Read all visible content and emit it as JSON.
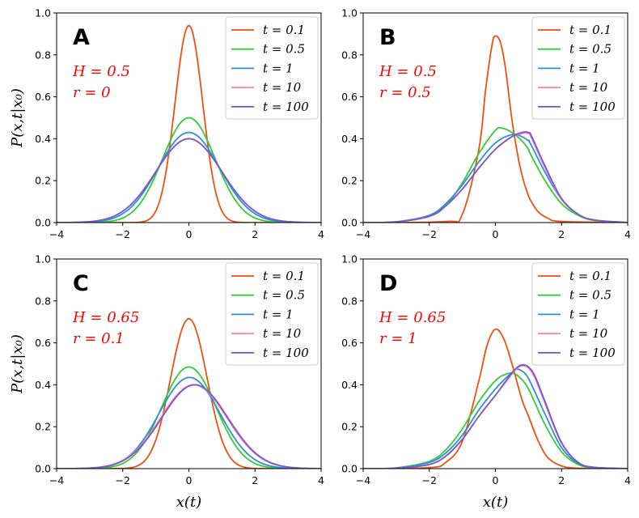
{
  "figure": {
    "x_axis_label": "x(t)",
    "y_axis_label": "P(x,t|x₀)"
  },
  "legend_prefix": "t = ",
  "series_meta": [
    {
      "name": "0.1",
      "color": "#f0500f"
    },
    {
      "name": "0.5",
      "color": "#33cc33"
    },
    {
      "name": "1",
      "color": "#2b8fd9"
    },
    {
      "name": "10",
      "color": "#ff7fbf"
    },
    {
      "name": "100",
      "color": "#7759c9"
    }
  ],
  "chart_data": [
    {
      "type": "line",
      "panel": "A",
      "H": "0.5",
      "r": "0",
      "xlim": [
        -4,
        4
      ],
      "ylim": [
        0,
        1
      ],
      "xticks": [
        -4,
        -2,
        0,
        2,
        4
      ],
      "yticks": [
        0,
        0.2,
        0.4,
        0.6,
        0.8,
        1.0
      ],
      "series": [
        {
          "name": "0.1",
          "kind": "gauss",
          "peak": 0.94,
          "mu": 0,
          "sigma": 0.42
        },
        {
          "name": "0.5",
          "kind": "gauss",
          "peak": 0.5,
          "mu": 0,
          "sigma": 0.8
        },
        {
          "name": "1",
          "kind": "gauss",
          "peak": 0.43,
          "mu": 0,
          "sigma": 0.93
        },
        {
          "name": "10",
          "kind": "gauss",
          "peak": 0.4,
          "mu": 0,
          "sigma": 1.0
        },
        {
          "name": "100",
          "kind": "gauss",
          "peak": 0.4,
          "mu": 0,
          "sigma": 1.0
        }
      ]
    },
    {
      "type": "line",
      "panel": "B",
      "H": "0.5",
      "r": "0.5",
      "xlim": [
        -4,
        4
      ],
      "ylim": [
        0,
        1
      ],
      "xticks": [
        -4,
        -2,
        0,
        2,
        4
      ],
      "yticks": [
        0,
        0.2,
        0.4,
        0.6,
        0.8,
        1.0
      ],
      "series": [
        {
          "name": "0.1",
          "kind": "points",
          "x": [
            -4,
            -1.5,
            -1,
            -0.5,
            -0.3,
            -0.1,
            0,
            0.15,
            0.3,
            0.5,
            0.7,
            0.85,
            0.95,
            1.05,
            1.3,
            1.6,
            2,
            4
          ],
          "y": [
            0,
            0.005,
            0.04,
            0.35,
            0.63,
            0.85,
            0.89,
            0.86,
            0.74,
            0.49,
            0.3,
            0.2,
            0.15,
            0.11,
            0.05,
            0.02,
            0.005,
            0
          ]
        },
        {
          "name": "0.5",
          "kind": "points",
          "x": [
            -4,
            -3,
            -2,
            -1.5,
            -1,
            -0.5,
            0,
            0.2,
            0.5,
            0.8,
            1.0,
            1.05,
            1.5,
            2,
            2.5,
            3,
            4
          ],
          "y": [
            0,
            0.003,
            0.03,
            0.08,
            0.19,
            0.33,
            0.44,
            0.45,
            0.43,
            0.39,
            0.35,
            0.33,
            0.2,
            0.09,
            0.035,
            0.01,
            0
          ]
        },
        {
          "name": "1",
          "kind": "points",
          "x": [
            -4,
            -3,
            -2,
            -1.5,
            -1,
            -0.5,
            0,
            0.5,
            0.8,
            1.0,
            1.05,
            1.5,
            2,
            2.5,
            3,
            4
          ],
          "y": [
            0,
            0.004,
            0.035,
            0.09,
            0.18,
            0.29,
            0.38,
            0.42,
            0.41,
            0.39,
            0.38,
            0.24,
            0.11,
            0.04,
            0.012,
            0
          ]
        },
        {
          "name": "10",
          "kind": "points",
          "x": [
            -4,
            -3,
            -2,
            -1.5,
            -1,
            -0.5,
            0,
            0.5,
            0.8,
            1.0,
            1.1,
            1.5,
            2,
            2.5,
            3,
            4
          ],
          "y": [
            0,
            0.004,
            0.03,
            0.08,
            0.16,
            0.26,
            0.35,
            0.41,
            0.425,
            0.425,
            0.4,
            0.26,
            0.11,
            0.04,
            0.012,
            0
          ]
        },
        {
          "name": "100",
          "kind": "points",
          "x": [
            -4,
            -3,
            -2,
            -1.5,
            -1,
            -0.5,
            0,
            0.5,
            0.8,
            1.0,
            1.1,
            1.5,
            2,
            2.5,
            3,
            4
          ],
          "y": [
            0,
            0.004,
            0.03,
            0.08,
            0.16,
            0.26,
            0.35,
            0.41,
            0.43,
            0.43,
            0.41,
            0.27,
            0.115,
            0.04,
            0.012,
            0
          ]
        }
      ]
    },
    {
      "type": "line",
      "panel": "C",
      "H": "0.65",
      "r": "0.1",
      "xlim": [
        -4,
        4
      ],
      "ylim": [
        0,
        1
      ],
      "xticks": [
        -4,
        -2,
        0,
        2,
        4
      ],
      "yticks": [
        0,
        0.2,
        0.4,
        0.6,
        0.8,
        1.0
      ],
      "series": [
        {
          "name": "0.1",
          "kind": "gauss",
          "peak": 0.715,
          "mu": 0,
          "sigma": 0.55
        },
        {
          "name": "0.5",
          "kind": "gauss",
          "peak": 0.485,
          "mu": 0,
          "sigma": 0.82
        },
        {
          "name": "1",
          "kind": "gauss",
          "peak": 0.435,
          "mu": 0.02,
          "sigma": 0.92
        },
        {
          "name": "10",
          "kind": "gauss",
          "peak": 0.4,
          "mu": 0.15,
          "sigma": 1.0
        },
        {
          "name": "100",
          "kind": "gauss",
          "peak": 0.4,
          "mu": 0.18,
          "sigma": 1.0
        }
      ]
    },
    {
      "type": "line",
      "panel": "D",
      "H": "0.65",
      "r": "1",
      "xlim": [
        -4,
        4
      ],
      "ylim": [
        0,
        1
      ],
      "xticks": [
        -4,
        -2,
        0,
        2,
        4
      ],
      "yticks": [
        0,
        0.2,
        0.4,
        0.6,
        0.8,
        1.0
      ],
      "series": [
        {
          "name": "0.1",
          "kind": "points",
          "x": [
            -4,
            -2,
            -1.5,
            -1,
            -0.5,
            -0.25,
            0,
            0.25,
            0.5,
            0.8,
            1.0,
            1.3,
            1.6,
            2,
            2.5,
            4
          ],
          "y": [
            0,
            0.005,
            0.03,
            0.13,
            0.42,
            0.59,
            0.665,
            0.62,
            0.5,
            0.33,
            0.25,
            0.13,
            0.05,
            0.013,
            0.002,
            0
          ]
        },
        {
          "name": "0.5",
          "kind": "points",
          "x": [
            -4,
            -3,
            -2,
            -1.5,
            -1,
            -0.5,
            0,
            0.3,
            0.5,
            0.7,
            1.0,
            1.5,
            2,
            2.5,
            3,
            4
          ],
          "y": [
            0,
            0.004,
            0.035,
            0.09,
            0.19,
            0.32,
            0.42,
            0.45,
            0.455,
            0.44,
            0.38,
            0.21,
            0.08,
            0.02,
            0.004,
            0
          ]
        },
        {
          "name": "1",
          "kind": "points",
          "x": [
            -4,
            -3,
            -2,
            -1.5,
            -1,
            -0.5,
            0,
            0.3,
            0.6,
            0.75,
            1.0,
            1.5,
            2,
            2.5,
            3,
            4
          ],
          "y": [
            0,
            0.003,
            0.03,
            0.075,
            0.16,
            0.28,
            0.38,
            0.43,
            0.47,
            0.47,
            0.43,
            0.26,
            0.1,
            0.025,
            0.005,
            0
          ]
        },
        {
          "name": "10",
          "kind": "points",
          "x": [
            -4,
            -3,
            -2,
            -1.5,
            -1,
            -0.5,
            0,
            0.3,
            0.6,
            0.8,
            1.0,
            1.2,
            1.5,
            2,
            2.5,
            3,
            4
          ],
          "y": [
            0,
            0.002,
            0.02,
            0.06,
            0.14,
            0.25,
            0.35,
            0.41,
            0.47,
            0.49,
            0.48,
            0.43,
            0.31,
            0.12,
            0.03,
            0.006,
            0
          ]
        },
        {
          "name": "100",
          "kind": "points",
          "x": [
            -4,
            -3,
            -2,
            -1.5,
            -1,
            -0.5,
            0,
            0.3,
            0.6,
            0.8,
            1.0,
            1.2,
            1.5,
            2,
            2.5,
            3,
            4
          ],
          "y": [
            0,
            0.002,
            0.02,
            0.06,
            0.14,
            0.25,
            0.35,
            0.415,
            0.475,
            0.495,
            0.485,
            0.44,
            0.32,
            0.125,
            0.03,
            0.006,
            0
          ]
        }
      ]
    }
  ]
}
